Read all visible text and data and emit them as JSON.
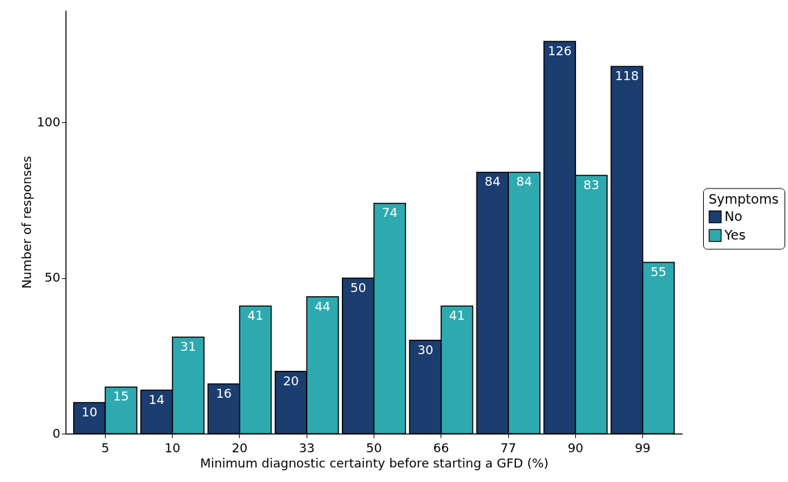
{
  "chart_data": {
    "type": "bar",
    "xlabel": "Minimum diagnostic certainty before starting a GFD (%)",
    "ylabel": "Number of responses",
    "legend_title": "Symptoms",
    "categories": [
      "5",
      "10",
      "20",
      "33",
      "50",
      "66",
      "77",
      "90",
      "99"
    ],
    "series": [
      {
        "name": "No",
        "color": "#1b3d6f",
        "values": [
          10,
          14,
          16,
          20,
          50,
          30,
          84,
          126,
          118
        ]
      },
      {
        "name": "Yes",
        "color": "#2ea9b0",
        "values": [
          15,
          31,
          41,
          44,
          74,
          41,
          84,
          83,
          55
        ]
      }
    ],
    "ylim": [
      0,
      136
    ],
    "yticks": [
      0,
      50,
      100
    ],
    "grid": false,
    "legend": "right",
    "data_labels": true
  }
}
